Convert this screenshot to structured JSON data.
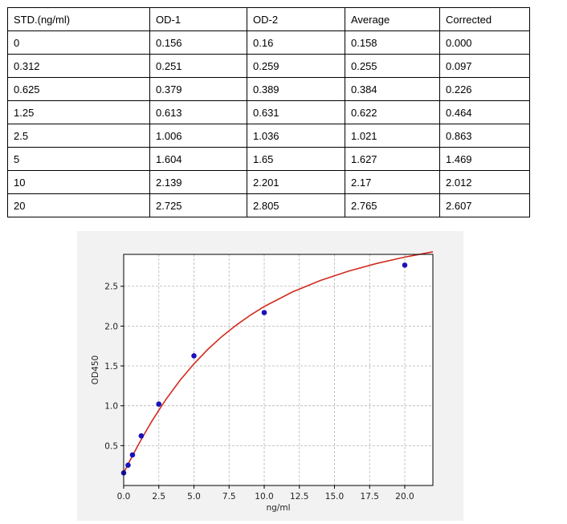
{
  "table": {
    "headers": [
      "STD.(ng/ml)",
      "OD-1",
      "OD-2",
      "Average",
      "Corrected"
    ],
    "rows": [
      [
        "0",
        "0.156",
        "0.16",
        "0.158",
        "0.000"
      ],
      [
        "0.312",
        "0.251",
        "0.259",
        "0.255",
        "0.097"
      ],
      [
        "0.625",
        "0.379",
        "0.389",
        "0.384",
        "0.226"
      ],
      [
        "1.25",
        "0.613",
        "0.631",
        "0.622",
        "0.464"
      ],
      [
        "2.5",
        "1.006",
        "1.036",
        "1.021",
        "0.863"
      ],
      [
        "5",
        "1.604",
        "1.65",
        "1.627",
        "1.469"
      ],
      [
        "10",
        "2.139",
        "2.201",
        "2.17",
        "2.012"
      ],
      [
        "20",
        "2.725",
        "2.805",
        "2.765",
        "2.607"
      ]
    ]
  },
  "chart_data": {
    "type": "scatter",
    "title": "",
    "xlabel": "ng/ml",
    "ylabel": "OD450",
    "xlim": [
      0,
      22
    ],
    "ylim": [
      0,
      2.9
    ],
    "x_ticks": [
      "0.0",
      "2.5",
      "5.0",
      "7.5",
      "10.0",
      "12.5",
      "15.0",
      "17.5",
      "20.0"
    ],
    "y_ticks": [
      "0.5",
      "1.0",
      "1.5",
      "2.0",
      "2.5"
    ],
    "grid": true,
    "series": [
      {
        "x": [
          0,
          0.312,
          0.625,
          1.25,
          2.5,
          5,
          10,
          20
        ],
        "y": [
          0.158,
          0.255,
          0.384,
          0.622,
          1.021,
          1.627,
          2.17,
          2.765
        ]
      }
    ],
    "fit_curve": {
      "x": [
        0,
        0.5,
        1,
        1.5,
        2,
        2.5,
        3,
        4,
        5,
        6,
        7,
        8,
        9,
        10,
        12,
        14,
        16,
        18,
        20,
        22
      ],
      "y": [
        0.158,
        0.331,
        0.497,
        0.656,
        0.805,
        0.945,
        1.078,
        1.318,
        1.527,
        1.711,
        1.871,
        2.011,
        2.136,
        2.245,
        2.428,
        2.573,
        2.69,
        2.786,
        2.866,
        2.932
      ]
    },
    "colors": {
      "points": "#1a12b8",
      "curve": "#d22b1f",
      "grid": "#b5b5b5"
    }
  }
}
